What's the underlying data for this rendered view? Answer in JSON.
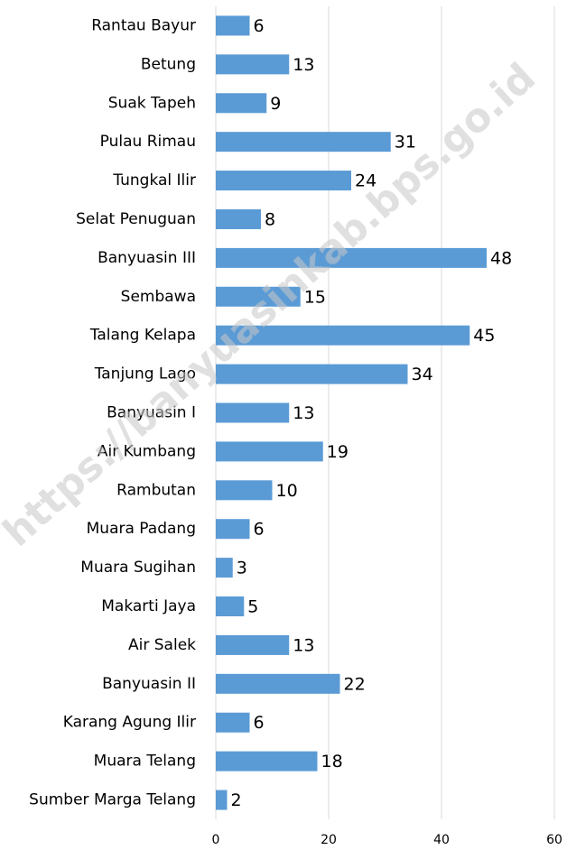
{
  "chart_data": {
    "type": "bar",
    "orientation": "horizontal",
    "categories": [
      "Rantau Bayur",
      "Betung",
      "Suak Tapeh",
      "Pulau Rimau",
      "Tungkal Ilir",
      "Selat Penuguan",
      "Banyuasin III",
      "Sembawa",
      "Talang Kelapa",
      "Tanjung Lago",
      "Banyuasin I",
      "Air Kumbang",
      "Rambutan",
      "Muara Padang",
      "Muara Sugihan",
      "Makarti Jaya",
      "Air Salek",
      "Banyuasin II",
      "Karang Agung Ilir",
      "Muara Telang",
      "Sumber Marga Telang"
    ],
    "values": [
      6,
      13,
      9,
      31,
      24,
      8,
      48,
      15,
      45,
      34,
      13,
      19,
      10,
      6,
      3,
      5,
      13,
      22,
      6,
      18,
      2
    ],
    "color": "#5b9bd5",
    "xlim": [
      0,
      60
    ],
    "xticks": [
      0,
      20,
      40,
      60
    ],
    "grid": true,
    "watermark": "https://banyuasinkab.bps.go.id"
  }
}
